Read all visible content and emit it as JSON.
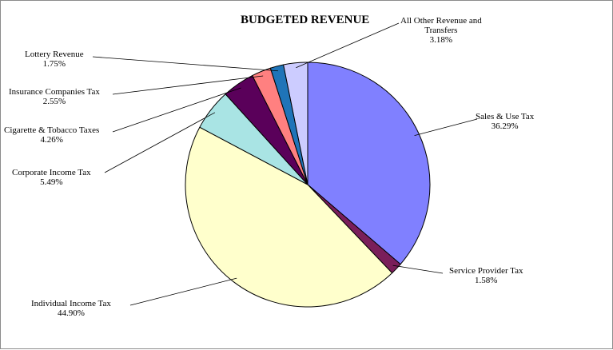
{
  "chart_data": {
    "type": "pie",
    "title": "BUDGETED REVENUE",
    "slices": [
      {
        "name": "Sales & Use Tax",
        "value": 36.29,
        "label": "36.29%",
        "color": "#8080ff"
      },
      {
        "name": "Service Provider Tax",
        "value": 1.58,
        "label": "1.58%",
        "color": "#7a1e5a"
      },
      {
        "name": "Individual Income Tax",
        "value": 44.9,
        "label": "44.90%",
        "color": "#ffffcc"
      },
      {
        "name": "Corporate Income Tax",
        "value": 5.49,
        "label": "5.49%",
        "color": "#a9e4e4"
      },
      {
        "name": "Cigarette & Tobacco Taxes",
        "value": 4.26,
        "label": "4.26%",
        "color": "#5a005a"
      },
      {
        "name": "Insurance Companies Tax",
        "value": 2.55,
        "label": "2.55%",
        "color": "#ff8080"
      },
      {
        "name": "Lottery Revenue",
        "value": 1.75,
        "label": "1.75%",
        "color": "#1f74b8"
      },
      {
        "name": "All Other Revenue and Transfers",
        "value": 3.18,
        "label": "3.18%",
        "color": "#ccccff"
      }
    ],
    "start_angle": "12 o'clock",
    "direction": "clockwise",
    "legend": "none"
  }
}
